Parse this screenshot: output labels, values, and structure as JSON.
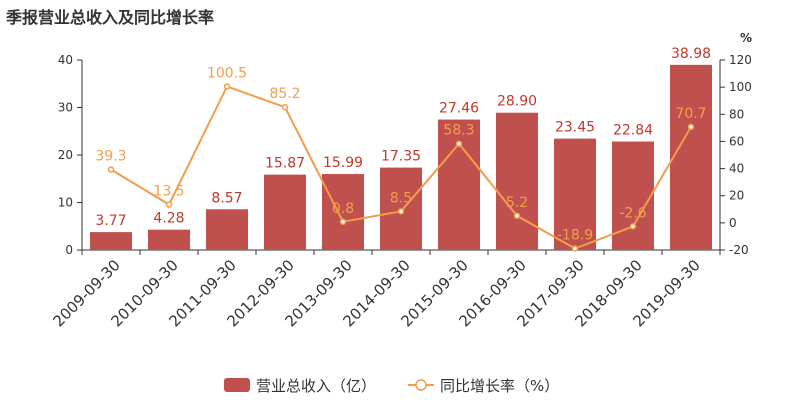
{
  "title": "季报营业总收入及同比增长率",
  "colors": {
    "bar": "#c0504d",
    "bar_label": "#c0392b",
    "line": "#f39c4a",
    "axis": "#333333"
  },
  "chart_data": {
    "type": "bar",
    "categories": [
      "2009-09-30",
      "2010-09-30",
      "2011-09-30",
      "2012-09-30",
      "2013-09-30",
      "2014-09-30",
      "2015-09-30",
      "2016-09-30",
      "2017-09-30",
      "2018-09-30",
      "2019-09-30"
    ],
    "series": [
      {
        "name": "营业总收入（亿）",
        "type": "bar",
        "axis": "left",
        "values": [
          3.77,
          4.28,
          8.57,
          15.87,
          15.99,
          17.35,
          27.46,
          28.9,
          23.45,
          22.84,
          38.98
        ],
        "labels": [
          "3.77",
          "4.28",
          "8.57",
          "15.87",
          "15.99",
          "17.35",
          "27.46",
          "28.90",
          "23.45",
          "22.84",
          "38.98"
        ]
      },
      {
        "name": "同比增长率（%）",
        "type": "line",
        "axis": "right",
        "values": [
          39.3,
          13.5,
          100.5,
          85.2,
          0.8,
          8.5,
          58.3,
          5.2,
          -18.9,
          -2.6,
          70.7
        ],
        "labels": [
          "39.3",
          "13.5",
          "100.5",
          "85.2",
          "0.8",
          "8.5",
          "58.3",
          "5.2",
          "-18.9",
          "-2.6",
          "70.7"
        ]
      }
    ],
    "y_left": {
      "min": 0,
      "max": 40,
      "ticks": [
        0,
        10,
        20,
        30,
        40
      ]
    },
    "y_right": {
      "min": -20,
      "max": 120,
      "ticks": [
        -20,
        0,
        20,
        40,
        60,
        80,
        100,
        120
      ],
      "unit": "%"
    },
    "grid": false,
    "legend_position": "bottom-center"
  }
}
